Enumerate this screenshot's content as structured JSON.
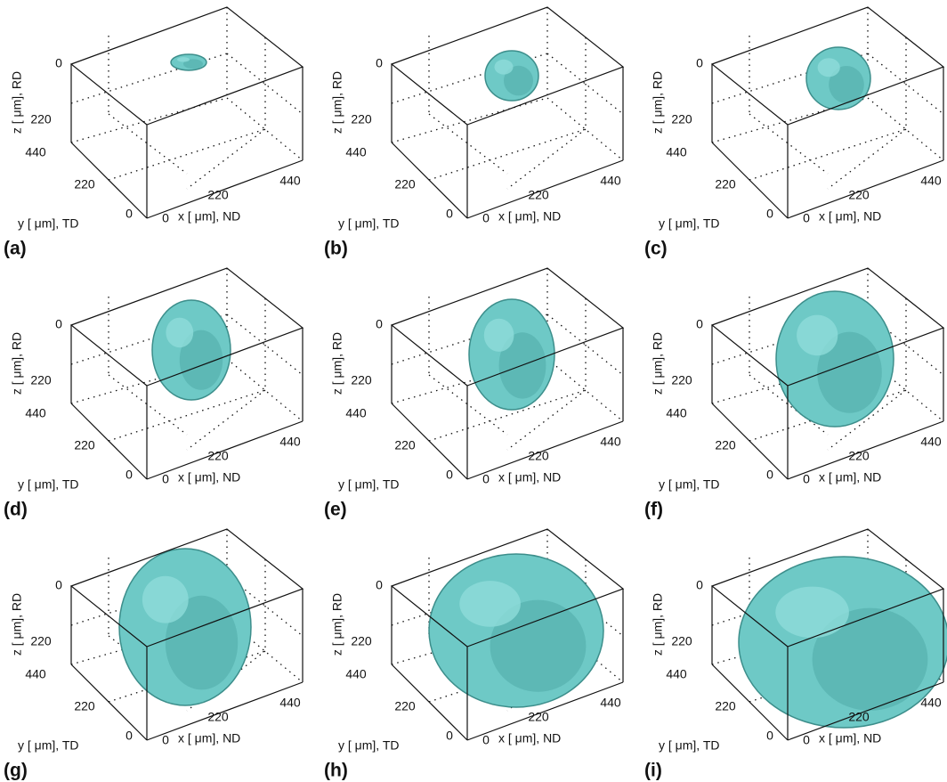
{
  "figure": {
    "panels": [
      {
        "label": "(a)",
        "z_label": "z [ μm], RD",
        "y_label": "y [ μm], TD",
        "x_label": "x [ μm], ND",
        "z_ticks": [
          0,
          220
        ],
        "y_ticks": [
          440,
          220,
          0
        ],
        "x_ticks": [
          0,
          220,
          440
        ]
      },
      {
        "label": "(b)",
        "z_label": "z [ μm], RD",
        "y_label": "y [ μm], TD",
        "x_label": "x [ μm], ND",
        "z_ticks": [
          0,
          220
        ],
        "y_ticks": [
          440,
          220,
          0
        ],
        "x_ticks": [
          0,
          220,
          440
        ]
      },
      {
        "label": "(c)",
        "z_label": "z [ μm], RD",
        "y_label": "y [ μm], TD",
        "x_label": "x [ μm], ND",
        "z_ticks": [
          0,
          220
        ],
        "y_ticks": [
          440,
          220,
          0
        ],
        "x_ticks": [
          0,
          220,
          440
        ]
      },
      {
        "label": "(d)",
        "z_label": "z [ μm], RD",
        "y_label": "y [ μm], TD",
        "x_label": "x [ μm], ND",
        "z_ticks": [
          0,
          220
        ],
        "y_ticks": [
          440,
          220,
          0
        ],
        "x_ticks": [
          0,
          220,
          440
        ]
      },
      {
        "label": "(e)",
        "z_label": "z [ μm], RD",
        "y_label": "y [ μm], TD",
        "x_label": "x [ μm], ND",
        "z_ticks": [
          0,
          220
        ],
        "y_ticks": [
          440,
          220,
          0
        ],
        "x_ticks": [
          0,
          220,
          440
        ]
      },
      {
        "label": "(f)",
        "z_label": "z [ μm], RD",
        "y_label": "y [ μm], TD",
        "x_label": "x [ μm], ND",
        "z_ticks": [
          0,
          220
        ],
        "y_ticks": [
          440,
          220,
          0
        ],
        "x_ticks": [
          0,
          220,
          440
        ]
      },
      {
        "label": "(g)",
        "z_label": "z [ μm], RD",
        "y_label": "y [ μm], TD",
        "x_label": "x [ μm], ND",
        "z_ticks": [
          0,
          220
        ],
        "y_ticks": [
          440,
          220,
          0
        ],
        "x_ticks": [
          0,
          220,
          440
        ]
      },
      {
        "label": "(h)",
        "z_label": "z [ μm], RD",
        "y_label": "y [ μm], TD",
        "x_label": "x [ μm], ND",
        "z_ticks": [
          0,
          220
        ],
        "y_ticks": [
          440,
          220,
          0
        ],
        "x_ticks": [
          0,
          220,
          440
        ]
      },
      {
        "label": "(i)",
        "z_label": "z [ μm], RD",
        "y_label": "y [ μm], TD",
        "x_label": "x [ μm], ND",
        "z_ticks": [
          0,
          220
        ],
        "y_ticks": [
          440,
          220,
          0
        ],
        "x_ticks": [
          0,
          220,
          440
        ]
      }
    ]
  }
}
